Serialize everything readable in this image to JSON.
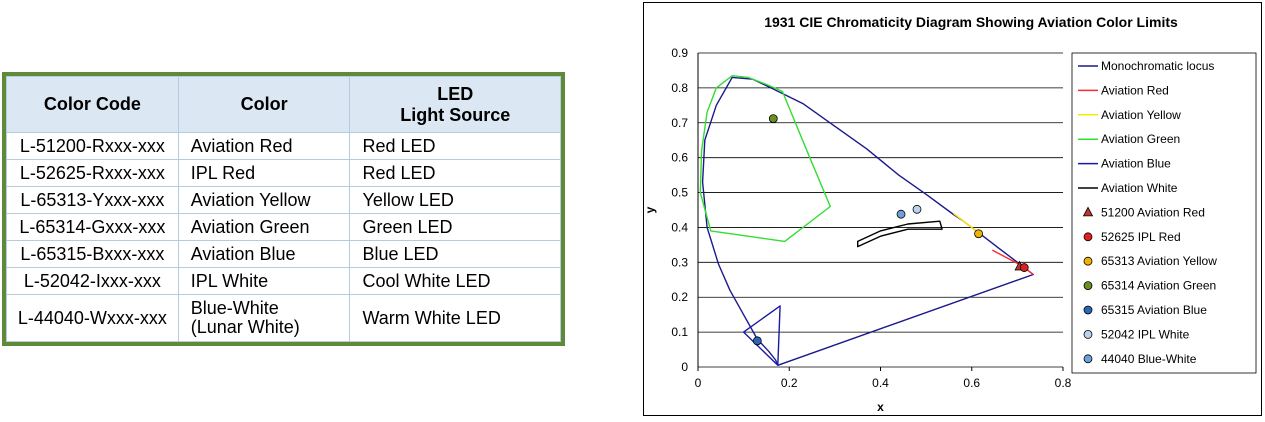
{
  "table": {
    "headers": [
      "Color Code",
      "Color",
      "LED\nLight Source"
    ],
    "rows": [
      {
        "code": "L-51200-Rxxx-xxx",
        "color": "Aviation Red",
        "source": "Red LED"
      },
      {
        "code": "L-52625-Rxxx-xxx",
        "color": "IPL Red",
        "source": "Red LED"
      },
      {
        "code": "L-65313-Yxxx-xxx",
        "color": "Aviation Yellow",
        "source": "Yellow LED"
      },
      {
        "code": "L-65314-Gxxx-xxx",
        "color": "Aviation Green",
        "source": "Green LED"
      },
      {
        "code": "L-65315-Bxxx-xxx",
        "color": "Aviation Blue",
        "source": "Blue LED"
      },
      {
        "code": "L-52042-Ixxx-xxx",
        "color": "IPL White",
        "source": "Cool White LED"
      },
      {
        "code": "L-44040-Wxxx-xxx",
        "color": "Blue-White\n(Lunar White)",
        "source": "Warm White LED"
      }
    ]
  },
  "chart_data": {
    "type": "scatter",
    "title": "1931 CIE Chromaticity Diagram Showing Aviation Color Limits",
    "xlabel": "x",
    "ylabel": "y",
    "xlim": [
      0,
      0.8
    ],
    "ylim": [
      0,
      0.9
    ],
    "x_ticks": [
      0,
      0.2,
      0.4,
      0.6,
      0.8
    ],
    "y_ticks": [
      0,
      0.1,
      0.2,
      0.3,
      0.4,
      0.5,
      0.6,
      0.7,
      0.8,
      0.9
    ],
    "x_tick_labels": [
      "0",
      "0.2",
      "0.4",
      "0.6",
      "0.8"
    ],
    "y_tick_labels": [
      "0",
      "0.1",
      "0.2",
      "0.3",
      "0.4",
      "0.5",
      "0.6",
      "0.7",
      "0.8",
      "0.9"
    ],
    "grid": "horizontal",
    "legend": "right",
    "line_series": [
      {
        "name": "Monochromatic locus",
        "color": "#1a1a8c",
        "closed": false,
        "points": [
          [
            0.175,
            0.005
          ],
          [
            0.17,
            0.02
          ],
          [
            0.155,
            0.045
          ],
          [
            0.13,
            0.08
          ],
          [
            0.1,
            0.15
          ],
          [
            0.07,
            0.22
          ],
          [
            0.045,
            0.295
          ],
          [
            0.02,
            0.4
          ],
          [
            0.01,
            0.53
          ],
          [
            0.015,
            0.65
          ],
          [
            0.04,
            0.75
          ],
          [
            0.075,
            0.83
          ],
          [
            0.12,
            0.825
          ],
          [
            0.16,
            0.8
          ],
          [
            0.23,
            0.755
          ],
          [
            0.3,
            0.69
          ],
          [
            0.37,
            0.625
          ],
          [
            0.44,
            0.55
          ],
          [
            0.5,
            0.495
          ],
          [
            0.56,
            0.437
          ],
          [
            0.58,
            0.42
          ],
          [
            0.62,
            0.38
          ],
          [
            0.66,
            0.34
          ],
          [
            0.7,
            0.3
          ],
          [
            0.735,
            0.265
          ],
          [
            0.175,
            0.005
          ]
        ]
      },
      {
        "name": "Aviation Red",
        "color": "#ff2a2a",
        "closed": false,
        "points": [
          [
            0.645,
            0.335
          ],
          [
            0.71,
            0.29
          ],
          [
            0.735,
            0.265
          ]
        ]
      },
      {
        "name": "Aviation Yellow",
        "color": "#ffe600",
        "closed": false,
        "points": [
          [
            0.56,
            0.44
          ],
          [
            0.595,
            0.405
          ],
          [
            0.62,
            0.38
          ]
        ]
      },
      {
        "name": "Aviation Green",
        "color": "#33dd33",
        "closed": true,
        "points": [
          [
            0.185,
            0.79
          ],
          [
            0.15,
            0.81
          ],
          [
            0.11,
            0.83
          ],
          [
            0.075,
            0.835
          ],
          [
            0.04,
            0.8
          ],
          [
            0.02,
            0.73
          ],
          [
            0.008,
            0.62
          ],
          [
            0.005,
            0.5
          ],
          [
            0.028,
            0.39
          ],
          [
            0.19,
            0.36
          ],
          [
            0.29,
            0.46
          ],
          [
            0.245,
            0.6
          ],
          [
            0.185,
            0.79
          ]
        ]
      },
      {
        "name": "Aviation Blue",
        "color": "#1a1aa8",
        "closed": true,
        "points": [
          [
            0.1,
            0.1
          ],
          [
            0.18,
            0.175
          ],
          [
            0.175,
            0.005
          ],
          [
            0.1,
            0.1
          ]
        ]
      },
      {
        "name": "Aviation White",
        "color": "#000000",
        "closed": true,
        "points": [
          [
            0.35,
            0.36
          ],
          [
            0.4,
            0.39
          ],
          [
            0.46,
            0.41
          ],
          [
            0.53,
            0.418
          ],
          [
            0.535,
            0.395
          ],
          [
            0.46,
            0.395
          ],
          [
            0.4,
            0.375
          ],
          [
            0.35,
            0.345
          ],
          [
            0.35,
            0.36
          ]
        ]
      }
    ],
    "point_series": [
      {
        "name": "51200 Aviation Red",
        "marker": "triangle",
        "color": "#c0392b",
        "x": 0.705,
        "y": 0.288
      },
      {
        "name": "52625 IPL Red",
        "marker": "circle",
        "color": "#e02020",
        "x": 0.715,
        "y": 0.285
      },
      {
        "name": "65313 Aviation Yellow",
        "marker": "circle",
        "color": "#f0b400",
        "x": 0.615,
        "y": 0.382
      },
      {
        "name": "65314 Aviation Green",
        "marker": "circle",
        "color": "#6b8e23",
        "x": 0.165,
        "y": 0.712
      },
      {
        "name": "65315 Aviation Blue",
        "marker": "circle",
        "color": "#2b66b8",
        "x": 0.13,
        "y": 0.075
      },
      {
        "name": "52042 IPL White",
        "marker": "circle",
        "color": "#b9d3ee",
        "x": 0.48,
        "y": 0.452
      },
      {
        "name": "44040 Blue-White",
        "marker": "circle",
        "color": "#6fa0d8",
        "x": 0.445,
        "y": 0.438
      }
    ]
  }
}
